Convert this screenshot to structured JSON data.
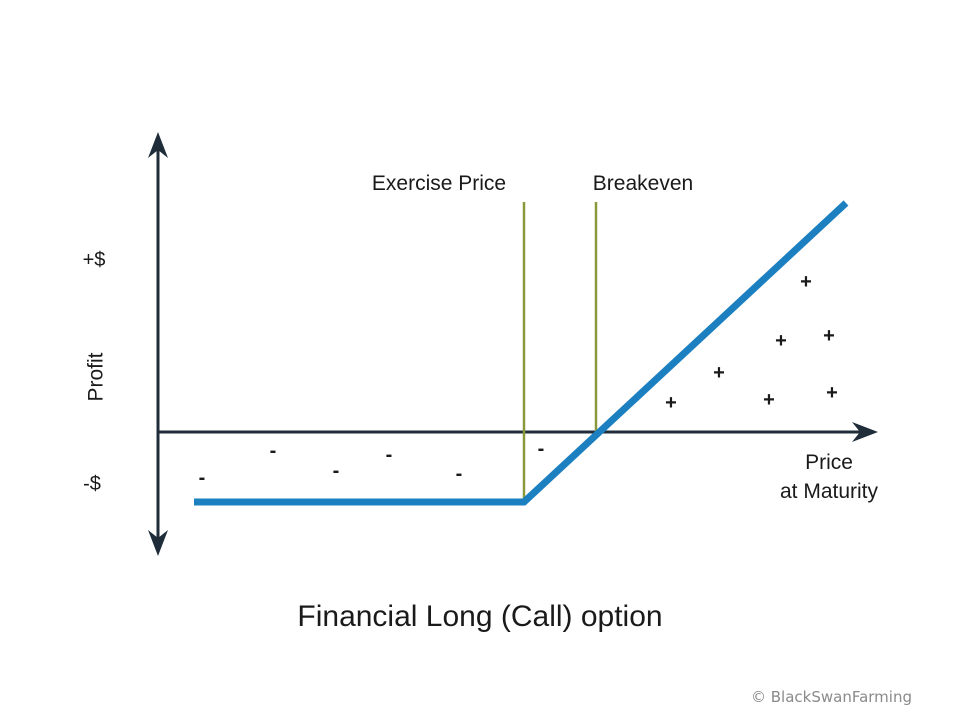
{
  "title": "Financial Long (Call) option",
  "y_axis": {
    "label": "Profit",
    "top_tick": "+$",
    "bottom_tick": "-$"
  },
  "x_axis": {
    "label_line1": "Price",
    "label_line2": "at Maturity"
  },
  "markers": {
    "exercise_label": "Exercise Price",
    "breakeven_label": "Breakeven"
  },
  "loss_sign": "-",
  "profit_sign": "+",
  "credit": "© BlackSwanFarming",
  "colors": {
    "payoff_line": "#1b7fc0",
    "marker_lines": "#8a9a3a",
    "axes": "#1f2d3a",
    "text": "#1a1a1a"
  }
}
